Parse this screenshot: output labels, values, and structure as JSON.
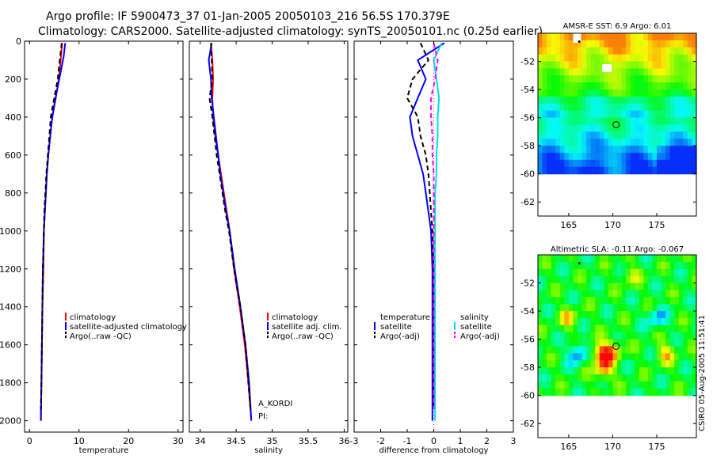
{
  "header": {
    "title_line1": "Argo profile: IF 5900473_37 01-Jan-2005 20050103_216 56.5S 170.379E",
    "title_line2": "Climatology: CARS2000. Satellite-adjusted climatology: synTS_20050101.nc (0.25d earlier)"
  },
  "side_stamp": "CSIRO 05-Aug-2005 11:51:41",
  "annotation": {
    "line1": "A_KORDI",
    "line2": "PI:"
  },
  "colors": {
    "climatology": "#ff0000",
    "satellite": "#0000ff",
    "argo": "#000000",
    "salinity_satellite": "#00e0e0",
    "salinity_argo": "#ff00ff"
  },
  "chart_data": [
    {
      "type": "line",
      "name": "temperature",
      "xlabel": "temperature",
      "xlim": [
        -1,
        31
      ],
      "ylim": [
        2060,
        0
      ],
      "xticks": [
        "0",
        "10",
        "20",
        "30"
      ],
      "yticks": [
        "0",
        "200",
        "400",
        "600",
        "800",
        "1000",
        "1200",
        "1400",
        "1600",
        "1800",
        "2000"
      ],
      "legend": [
        "climatology",
        "satellite-adjusted climatology",
        "Argo(..raw -QC)"
      ],
      "series": [
        {
          "name": "climatology",
          "color": "#ff0000",
          "style": "solid",
          "points": [
            [
              6.6,
              10
            ],
            [
              6.3,
              100
            ],
            [
              5.9,
              200
            ],
            [
              5.3,
              300
            ],
            [
              4.6,
              400
            ],
            [
              4.2,
              500
            ],
            [
              3.8,
              600
            ],
            [
              3.5,
              700
            ],
            [
              3.3,
              800
            ],
            [
              3.1,
              900
            ],
            [
              2.9,
              1000
            ],
            [
              2.8,
              1200
            ],
            [
              2.6,
              1400
            ],
            [
              2.5,
              1600
            ],
            [
              2.4,
              1800
            ],
            [
              2.3,
              2000
            ]
          ]
        },
        {
          "name": "satellite",
          "color": "#0000ff",
          "style": "solid",
          "points": [
            [
              7.2,
              10
            ],
            [
              6.9,
              80
            ],
            [
              6.0,
              200
            ],
            [
              5.1,
              320
            ],
            [
              4.5,
              420
            ],
            [
              4.1,
              520
            ],
            [
              3.8,
              600
            ],
            [
              3.5,
              700
            ],
            [
              3.3,
              800
            ],
            [
              3.1,
              900
            ],
            [
              2.9,
              1000
            ],
            [
              2.7,
              1200
            ],
            [
              2.6,
              1400
            ],
            [
              2.5,
              1600
            ],
            [
              2.4,
              1800
            ],
            [
              2.3,
              2000
            ]
          ]
        },
        {
          "name": "argo",
          "color": "#000000",
          "style": "dash",
          "points": [
            [
              6.5,
              10
            ],
            [
              6.1,
              100
            ],
            [
              5.7,
              200
            ],
            [
              5.0,
              300
            ],
            [
              4.3,
              400
            ],
            [
              4.0,
              500
            ],
            [
              3.7,
              600
            ],
            [
              3.4,
              700
            ],
            [
              3.2,
              800
            ],
            [
              3.0,
              900
            ],
            [
              2.9,
              1000
            ],
            [
              2.7,
              1200
            ],
            [
              2.6,
              1400
            ],
            [
              2.5,
              1600
            ],
            [
              2.4,
              1800
            ],
            [
              2.3,
              1940
            ]
          ]
        }
      ]
    },
    {
      "type": "line",
      "name": "salinity",
      "xlabel": "salinity",
      "xlim": [
        33.85,
        36.05
      ],
      "ylim": [
        2060,
        0
      ],
      "xticks": [
        "34",
        "34.5",
        "35",
        "35.5",
        "36"
      ],
      "legend": [
        "climatology",
        "satellite adj. clim.",
        "Argo(..raw -QC)"
      ],
      "series": [
        {
          "name": "climatology",
          "color": "#ff0000",
          "style": "solid",
          "points": [
            [
              34.15,
              10
            ],
            [
              34.17,
              100
            ],
            [
              34.18,
              200
            ],
            [
              34.17,
              300
            ],
            [
              34.18,
              400
            ],
            [
              34.21,
              500
            ],
            [
              34.25,
              600
            ],
            [
              34.29,
              700
            ],
            [
              34.33,
              800
            ],
            [
              34.37,
              900
            ],
            [
              34.41,
              1000
            ],
            [
              34.47,
              1200
            ],
            [
              34.55,
              1400
            ],
            [
              34.62,
              1600
            ],
            [
              34.67,
              1800
            ],
            [
              34.71,
              2000
            ]
          ]
        },
        {
          "name": "satellite",
          "color": "#0000ff",
          "style": "solid",
          "points": [
            [
              34.16,
              10
            ],
            [
              34.12,
              100
            ],
            [
              34.15,
              200
            ],
            [
              34.16,
              300
            ],
            [
              34.19,
              400
            ],
            [
              34.22,
              500
            ],
            [
              34.25,
              600
            ],
            [
              34.28,
              700
            ],
            [
              34.32,
              800
            ],
            [
              34.36,
              900
            ],
            [
              34.41,
              1000
            ],
            [
              34.48,
              1200
            ],
            [
              34.56,
              1400
            ],
            [
              34.63,
              1600
            ],
            [
              34.68,
              1800
            ],
            [
              34.71,
              2000
            ]
          ]
        },
        {
          "name": "argo",
          "color": "#000000",
          "style": "dash",
          "points": [
            [
              34.15,
              10
            ],
            [
              34.16,
              100
            ],
            [
              34.17,
              200
            ],
            [
              34.13,
              300
            ],
            [
              34.17,
              400
            ],
            [
              34.2,
              500
            ],
            [
              34.23,
              600
            ],
            [
              34.27,
              700
            ],
            [
              34.31,
              800
            ],
            [
              34.35,
              900
            ],
            [
              34.4,
              1000
            ],
            [
              34.47,
              1200
            ],
            [
              34.56,
              1400
            ],
            [
              34.63,
              1600
            ],
            [
              34.67,
              1800
            ],
            [
              34.7,
              1940
            ]
          ]
        }
      ]
    },
    {
      "type": "line",
      "name": "difference",
      "xlabel": "difference from climatology",
      "xlim": [
        -3,
        3
      ],
      "ylim": [
        2060,
        0
      ],
      "xticks": [
        "-3",
        "-2",
        "-1",
        "0",
        "1",
        "2",
        "3"
      ],
      "legend_left": {
        "title": "temperature",
        "items": [
          "satellite",
          "Argo(-adj)"
        ]
      },
      "legend_right": {
        "title": "salinity",
        "items": [
          "satellite",
          "Argo(-adj)"
        ]
      },
      "series": [
        {
          "name": "temperature satellite",
          "color": "#0000ff",
          "style": "solid",
          "points": [
            [
              0.4,
              10
            ],
            [
              -0.6,
              100
            ],
            [
              -0.3,
              200
            ],
            [
              -0.6,
              300
            ],
            [
              -0.9,
              400
            ],
            [
              -0.8,
              500
            ],
            [
              -0.6,
              600
            ],
            [
              -0.4,
              700
            ],
            [
              -0.3,
              800
            ],
            [
              -0.2,
              900
            ],
            [
              -0.1,
              1000
            ],
            [
              -0.05,
              1200
            ],
            [
              -0.05,
              1400
            ],
            [
              -0.05,
              1600
            ],
            [
              -0.05,
              1800
            ],
            [
              -0.05,
              2000
            ]
          ]
        },
        {
          "name": "temperature Argo(-adj)",
          "color": "#000000",
          "style": "dash",
          "points": [
            [
              -0.5,
              10
            ],
            [
              -0.2,
              100
            ],
            [
              -0.8,
              200
            ],
            [
              -1.0,
              300
            ],
            [
              -0.6,
              400
            ],
            [
              -0.5,
              500
            ],
            [
              -0.3,
              600
            ],
            [
              -0.2,
              700
            ],
            [
              -0.15,
              800
            ],
            [
              -0.1,
              900
            ],
            [
              -0.05,
              1000
            ],
            [
              0.0,
              1200
            ],
            [
              0.0,
              1400
            ],
            [
              0.0,
              1600
            ],
            [
              0.0,
              1800
            ],
            [
              0.0,
              1940
            ]
          ]
        },
        {
          "name": "salinity satellite",
          "color": "#00e0e0",
          "style": "solid",
          "points": [
            [
              0.3,
              10
            ],
            [
              0.0,
              100
            ],
            [
              0.1,
              200
            ],
            [
              0.2,
              300
            ],
            [
              0.15,
              400
            ],
            [
              0.15,
              500
            ],
            [
              0.1,
              600
            ],
            [
              0.1,
              700
            ],
            [
              0.05,
              800
            ],
            [
              0.05,
              900
            ],
            [
              0.05,
              1000
            ],
            [
              0.05,
              1200
            ],
            [
              0.05,
              1400
            ],
            [
              0.05,
              1600
            ],
            [
              0.05,
              1800
            ],
            [
              0.05,
              2000
            ]
          ]
        },
        {
          "name": "salinity Argo(-adj)",
          "color": "#ff00ff",
          "style": "dash",
          "points": [
            [
              0.0,
              10
            ],
            [
              0.15,
              100
            ],
            [
              0.05,
              200
            ],
            [
              -0.1,
              300
            ],
            [
              -0.1,
              400
            ],
            [
              -0.05,
              500
            ],
            [
              -0.05,
              600
            ],
            [
              0.0,
              700
            ],
            [
              0.0,
              800
            ],
            [
              0.0,
              900
            ],
            [
              0.0,
              1000
            ],
            [
              0.0,
              1200
            ],
            [
              0.0,
              1400
            ],
            [
              0.0,
              1600
            ],
            [
              0.0,
              1800
            ],
            [
              0.0,
              1940
            ]
          ]
        }
      ]
    },
    {
      "type": "heatmap",
      "name": "sst-map",
      "title": "AMSR-E SST: 6.9  Argo: 6.01",
      "xlim": [
        161.5,
        179.5
      ],
      "ylim": [
        -63,
        -50
      ],
      "xticks": [
        "165",
        "170",
        "175"
      ],
      "yticks": [
        "-52",
        "-54",
        "-56",
        "-58",
        "-60",
        "-62"
      ],
      "argo_position": [
        170.379,
        -56.5
      ],
      "field": "sst"
    },
    {
      "type": "heatmap",
      "name": "sla-map",
      "title": "Altimetric SLA: -0.11  Argo: -0.067",
      "xlim": [
        161.5,
        179.5
      ],
      "ylim": [
        -63,
        -50
      ],
      "xticks": [
        "165",
        "170",
        "175"
      ],
      "yticks": [
        "-52",
        "-54",
        "-56",
        "-58",
        "-60",
        "-62"
      ],
      "argo_position": [
        170.379,
        -56.5
      ],
      "field": "sla"
    }
  ]
}
